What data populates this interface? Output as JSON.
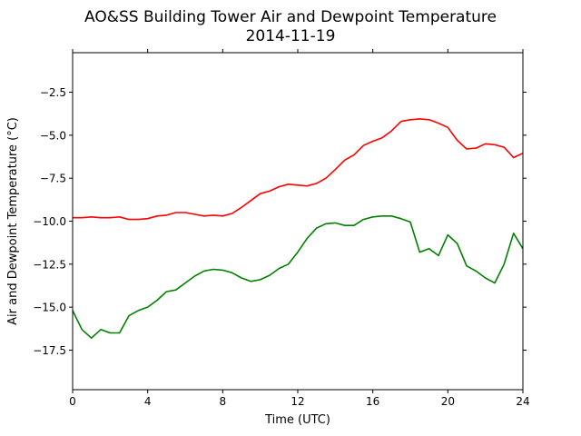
{
  "chart_data": {
    "type": "line",
    "title": "AO&SS Building Tower Air and Dewpoint Temperature",
    "subtitle": "2014-11-19",
    "xlabel": "Time (UTC)",
    "ylabel": "Air and Dewpoint Temperature (°C)",
    "xlim": [
      0,
      24
    ],
    "ylim": [
      -19.8,
      -0.2
    ],
    "xticks": [
      0,
      4,
      8,
      12,
      16,
      20,
      24
    ],
    "yticks": [
      -17.5,
      -15.0,
      -12.5,
      -10.0,
      -7.5,
      -5.0,
      -2.5
    ],
    "xtick_labels": [
      "0",
      "4",
      "8",
      "12",
      "16",
      "20",
      "24"
    ],
    "ytick_labels": [
      "−17.5",
      "−15.0",
      "−12.5",
      "−10.0",
      "−7.5",
      "−5.0",
      "−2.5"
    ],
    "grid": false,
    "series": [
      {
        "color": "#ff0000",
        "x": [
          0,
          0.5,
          1,
          1.5,
          2,
          2.5,
          3,
          3.5,
          4,
          4.5,
          5,
          5.5,
          6,
          6.5,
          7,
          7.5,
          8,
          8.5,
          9,
          9.5,
          10,
          10.5,
          11,
          11.5,
          12,
          12.5,
          13,
          13.5,
          14,
          14.5,
          15,
          15.5,
          16,
          16.5,
          17,
          17.5,
          18,
          18.5,
          19,
          19.5,
          20,
          20.5,
          21,
          21.5,
          22,
          22.5,
          23,
          23.5,
          24
        ],
        "values": [
          -9.8,
          -9.8,
          -9.75,
          -9.8,
          -9.8,
          -9.75,
          -9.9,
          -9.9,
          -9.85,
          -9.7,
          -9.65,
          -9.5,
          -9.5,
          -9.6,
          -9.7,
          -9.65,
          -9.7,
          -9.55,
          -9.2,
          -8.8,
          -8.4,
          -8.25,
          -8.0,
          -7.85,
          -7.9,
          -7.95,
          -7.8,
          -7.5,
          -7.0,
          -6.45,
          -6.15,
          -5.6,
          -5.35,
          -5.15,
          -4.75,
          -4.2,
          -4.1,
          -4.05,
          -4.1,
          -4.3,
          -4.55,
          -5.3,
          -5.8,
          -5.75,
          -5.5,
          -5.55,
          -5.7,
          -6.3,
          -6.05
        ]
      },
      {
        "color": "#008000",
        "x": [
          0,
          0.5,
          1,
          1.5,
          2,
          2.5,
          3,
          3.5,
          4,
          4.5,
          5,
          5.5,
          6,
          6.5,
          7,
          7.5,
          8,
          8.5,
          9,
          9.5,
          10,
          10.5,
          11,
          11.5,
          12,
          12.5,
          13,
          13.5,
          14,
          14.5,
          15,
          15.5,
          16,
          16.5,
          17,
          17.5,
          18,
          18.5,
          19,
          19.5,
          20,
          20.5,
          21,
          21.5,
          22,
          22.5,
          23,
          23.5,
          24
        ],
        "values": [
          -15.2,
          -16.3,
          -16.8,
          -16.3,
          -16.5,
          -16.5,
          -15.5,
          -15.2,
          -15.0,
          -14.6,
          -14.1,
          -14.0,
          -13.6,
          -13.2,
          -12.9,
          -12.8,
          -12.85,
          -13.0,
          -13.3,
          -13.5,
          -13.4,
          -13.15,
          -12.75,
          -12.5,
          -11.8,
          -11.0,
          -10.4,
          -10.15,
          -10.1,
          -10.25,
          -10.25,
          -9.9,
          -9.75,
          -9.7,
          -9.7,
          -9.85,
          -10.05,
          -11.8,
          -11.6,
          -12.0,
          -10.8,
          -11.3,
          -12.6,
          -12.9,
          -13.3,
          -13.6,
          -12.5,
          -10.7,
          -11.6
        ]
      }
    ]
  }
}
